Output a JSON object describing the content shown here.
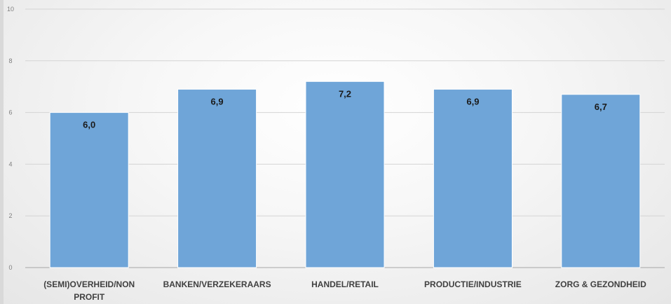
{
  "chart_data": {
    "type": "bar",
    "categories": [
      "(SEMI)OVERHEID/NON PROFIT",
      "BANKEN/VERZEKERAARS",
      "HANDEL/RETAIL",
      "PRODUCTIE/INDUSTRIE",
      "ZORG & GEZONDHEID"
    ],
    "category_lines": [
      [
        "(SEMI)OVERHEID/NON",
        "PROFIT"
      ],
      [
        "BANKEN/VERZEKERAARS"
      ],
      [
        "HANDEL/RETAIL"
      ],
      [
        "PRODUCTIE/INDUSTRIE"
      ],
      [
        "ZORG & GEZONDHEID"
      ]
    ],
    "values": [
      6.0,
      6.9,
      7.2,
      6.9,
      6.7
    ],
    "data_labels": [
      "6,0",
      "6,9",
      "7,2",
      "6,9",
      "6,7"
    ],
    "yticks": [
      "0",
      "2",
      "4",
      "6",
      "8",
      "10"
    ],
    "ylim": [
      0,
      10
    ],
    "grid": true,
    "legend": false,
    "bar_color": "#6fa5d8",
    "bar_edge_color": "#ffffff",
    "title": "",
    "xlabel": "",
    "ylabel": ""
  }
}
